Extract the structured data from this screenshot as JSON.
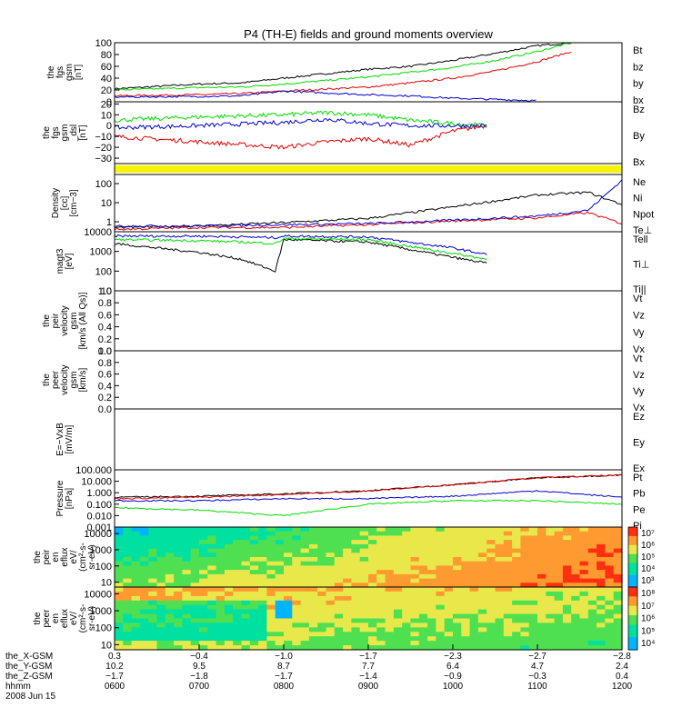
{
  "title": "P4 (TH-E) fields and ground moments overview",
  "colors": {
    "black": "#000000",
    "red": "#e00000",
    "green": "#00dd00",
    "blue": "#0000d0",
    "yellow": "#f5f500"
  },
  "chart_data": [
    {
      "id": "p1",
      "type": "line",
      "ylabel": [
        "the",
        "fgs",
        "gsm",
        "[nT]"
      ],
      "ylim": [
        0,
        100
      ],
      "yticks": [
        "100",
        "80",
        "60",
        "40",
        "20",
        "0"
      ],
      "series": [
        {
          "name": "Bt",
          "color": "black"
        },
        {
          "name": "bz",
          "color": "red"
        },
        {
          "name": "by",
          "color": "green"
        },
        {
          "name": "bx",
          "color": "blue"
        }
      ],
      "approx_values": {
        "x_hours": [
          6,
          7,
          7.5,
          8,
          9,
          9.5,
          10,
          10.5,
          11,
          11.4
        ],
        "Bt": [
          22,
          30,
          32,
          40,
          55,
          60,
          70,
          82,
          95,
          100
        ],
        "bz": [
          10,
          12,
          14,
          18,
          25,
          32,
          40,
          52,
          68,
          85
        ],
        "by": [
          20,
          24,
          25,
          30,
          42,
          50,
          58,
          70,
          85,
          100
        ],
        "bx": [
          8,
          9,
          10,
          18,
          12,
          10,
          6,
          4,
          2,
          null
        ]
      }
    },
    {
      "id": "p2",
      "type": "line",
      "ylabel": [
        "the",
        "fgs",
        "gsm",
        "_dsl",
        "[nT]"
      ],
      "ylim": [
        -35,
        22
      ],
      "yticks": [
        "20",
        "10",
        "0",
        "−10",
        "−20",
        "−30"
      ],
      "series": [
        {
          "name": "Bz",
          "color": "red"
        },
        {
          "name": "By",
          "color": "green"
        },
        {
          "name": "Bx",
          "color": "blue"
        }
      ],
      "approx_values": {
        "x_hours": [
          6,
          7,
          8,
          8.5,
          9,
          9.5,
          10,
          10.4
        ],
        "Bz": [
          -10,
          -15,
          -20,
          -15,
          -12,
          -18,
          -5,
          0
        ],
        "By": [
          5,
          8,
          10,
          12,
          10,
          5,
          2,
          0
        ],
        "Bx": [
          -2,
          0,
          3,
          6,
          2,
          0,
          0,
          0
        ]
      }
    },
    {
      "id": "p3",
      "type": "bar",
      "ylabel": [],
      "series": [
        {
          "name": "",
          "color": "yellow"
        }
      ]
    },
    {
      "id": "p4",
      "type": "line",
      "ylabel": [
        "Density",
        "[cc]",
        "[cm−3]"
      ],
      "yscale": "log",
      "ylim": [
        0.3,
        300
      ],
      "yticks": [
        "100",
        "10",
        "1"
      ],
      "series": [
        {
          "name": "Ne",
          "color": "red"
        },
        {
          "name": "Ni",
          "color": "black"
        },
        {
          "name": "Npot",
          "color": "blue"
        },
        {
          "name": "Te⊥",
          "color": "red"
        }
      ],
      "approx_values": {
        "x_hours": [
          6,
          7,
          8,
          9,
          10,
          11,
          11.6,
          12
        ],
        "Ni": [
          0.5,
          0.6,
          0.9,
          1.5,
          6,
          25,
          35,
          8
        ],
        "Ne": [
          0.4,
          0.5,
          0.5,
          0.7,
          1.1,
          1.6,
          3,
          0.8
        ],
        "Npot": [
          0.6,
          0.6,
          0.7,
          0.8,
          1.2,
          2,
          4,
          150
        ]
      }
    },
    {
      "id": "p5",
      "type": "line",
      "ylabel": [
        "magt3",
        "[eV]"
      ],
      "yscale": "log",
      "ylim": [
        10,
        10000
      ],
      "yticks": [
        "10000",
        "1000",
        "100",
        "10"
      ],
      "series": [
        {
          "name": "Tell",
          "color": "black"
        },
        {
          "name": "Ti⊥",
          "color": "blue"
        },
        {
          "name": "Ti||",
          "color": "green"
        }
      ],
      "approx_values": {
        "x_hours": [
          6,
          7,
          7.5,
          7.9,
          8,
          9,
          10,
          10.4
        ],
        "Te||": [
          2500,
          900,
          400,
          100,
          4000,
          3000,
          500,
          250
        ],
        "Ti_perp": [
          6000,
          6000,
          5500,
          5000,
          6000,
          5500,
          1500,
          700
        ],
        "Ti_par": [
          4000,
          3500,
          3000,
          2500,
          4500,
          4000,
          800,
          400
        ]
      }
    },
    {
      "id": "p6",
      "type": "line",
      "ylabel": [
        "the",
        "peir",
        "velocity",
        "gsm",
        "[km/s (All Qs)]"
      ],
      "ylim": [
        0,
        1
      ],
      "yticks": [
        "1.0",
        "0.8",
        "0.6",
        "0.4",
        "0.2",
        "0.0"
      ],
      "series": [
        {
          "name": "Vt",
          "color": "black"
        },
        {
          "name": "Vz",
          "color": "red"
        },
        {
          "name": "Vy",
          "color": "green"
        },
        {
          "name": "Vx",
          "color": "blue"
        }
      ]
    },
    {
      "id": "p7",
      "type": "line",
      "ylabel": [
        "the",
        "peer",
        "velocity",
        "gsm",
        "[km/s]"
      ],
      "ylim": [
        0,
        1
      ],
      "yticks": [
        "1.0",
        "0.8",
        "0.6",
        "0.4",
        "0.2",
        "0.0"
      ],
      "series": [
        {
          "name": "Vt",
          "color": "black"
        },
        {
          "name": "Vz",
          "color": "red"
        },
        {
          "name": "Vy",
          "color": "green"
        },
        {
          "name": "Vx",
          "color": "blue"
        }
      ]
    },
    {
      "id": "p8",
      "type": "line",
      "ylabel": [
        "E=−VxB",
        "[mV/m]"
      ],
      "ylim": [
        0,
        1
      ],
      "yticks": [],
      "series": [
        {
          "name": "Ez",
          "color": "red"
        },
        {
          "name": "Ey",
          "color": "green"
        },
        {
          "name": "Ex",
          "color": "blue"
        }
      ]
    },
    {
      "id": "p9",
      "type": "line",
      "ylabel": [
        "Pressure",
        "[nPa]"
      ],
      "yscale": "log",
      "ylim": [
        0.001,
        100
      ],
      "yticks": [
        "100.000",
        "10.000",
        "1.000",
        "0.100",
        "0.010",
        "0.001"
      ],
      "series": [
        {
          "name": "Pt",
          "color": "black"
        },
        {
          "name": "Pb",
          "color": "red"
        },
        {
          "name": "Pe",
          "color": "green"
        },
        {
          "name": "Pi",
          "color": "blue"
        }
      ],
      "approx_values": {
        "x_hours": [
          6,
          7,
          8,
          9,
          10,
          11,
          12
        ],
        "Pt": [
          0.4,
          0.5,
          0.8,
          1.5,
          5,
          20,
          35
        ],
        "Pb": [
          0.3,
          0.4,
          0.7,
          1.4,
          5,
          20,
          35
        ],
        "Pe": [
          0.05,
          0.03,
          0.01,
          0.1,
          0.2,
          0.2,
          0.1
        ],
        "Pi": [
          0.2,
          0.2,
          0.3,
          0.3,
          0.5,
          1.5,
          0.4
        ]
      }
    },
    {
      "id": "p10",
      "type": "heatmap",
      "ylabel": [
        "the",
        "peir",
        "en",
        "eflux",
        "eV/",
        "(cm²-s-",
        "sr-eV)"
      ],
      "yscale": "log",
      "ylim": [
        5,
        25000
      ],
      "yticks": [
        "10000",
        "1000",
        "100",
        "10"
      ],
      "colorbar": [
        "10⁷",
        "10⁶",
        "10⁵",
        "10⁴",
        "10³"
      ]
    },
    {
      "id": "p11",
      "type": "heatmap",
      "ylabel": [
        "the",
        "peer",
        "en",
        "eflux",
        "eV/",
        "(cm²-s-",
        "sr-eV)"
      ],
      "yscale": "log",
      "ylim": [
        5,
        25000
      ],
      "yticks": [
        "10000",
        "1000",
        "100",
        "10"
      ],
      "colorbar": [
        "10⁸",
        "10⁷",
        "10⁶",
        "10⁵",
        "10⁴"
      ]
    }
  ],
  "xaxis": {
    "times": [
      "0600",
      "0700",
      "0800",
      "0900",
      "1000",
      "1100",
      "1200"
    ],
    "rows": [
      {
        "label": "the_X-GSM",
        "values": [
          "0.3",
          "−0.4",
          "−1.0",
          "−1.7",
          "−2.3",
          "−2.7",
          "−2.8"
        ]
      },
      {
        "label": "the_Y-GSM",
        "values": [
          "10.2",
          "9.5",
          "8.7",
          "7.7",
          "6.4",
          "4.7",
          "2.4"
        ]
      },
      {
        "label": "the_Z-GSM",
        "values": [
          "−1.7",
          "−1.8",
          "−1.7",
          "−1.4",
          "−0.9",
          "−0.3",
          "0.4"
        ]
      },
      {
        "label": "hhmm",
        "values": [
          "0600",
          "0700",
          "0800",
          "0900",
          "1000",
          "1100",
          "1200"
        ]
      }
    ],
    "date": "2008 Jun 15"
  }
}
